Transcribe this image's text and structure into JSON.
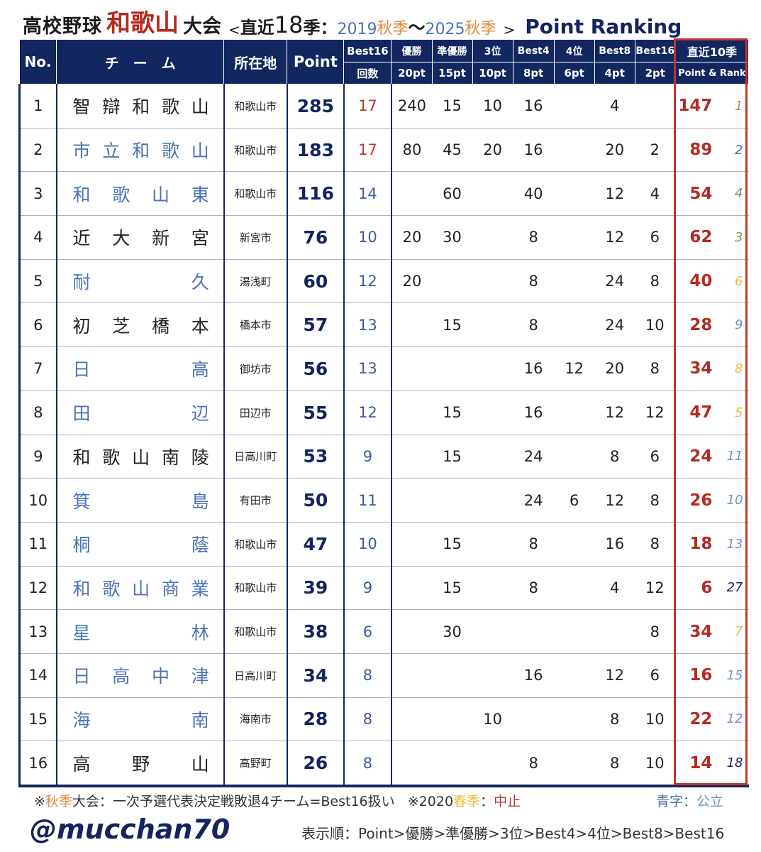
{
  "title": {
    "part1": "高校野球",
    "prefecture": "和歌山",
    "part2": "大会",
    "lt": "<",
    "recent": "直近",
    "seasons": "18",
    "season_unit": "季：",
    "from_year": "2019",
    "from_season": "秋季",
    "tilde": "～",
    "to_year": "2025",
    "to_season": "秋季",
    "gt": ">",
    "ranking": "Point Ranking"
  },
  "headers": {
    "no": "No.",
    "team": "チ　ー　ム",
    "location": "所在地",
    "point": "Point",
    "best16_count_top": "Best16",
    "best16_count_bottom": "回数",
    "cols": [
      {
        "label": "優勝",
        "pt": "20pt"
      },
      {
        "label": "準優勝",
        "pt": "15pt"
      },
      {
        "label": "3位",
        "pt": "10pt"
      },
      {
        "label": "Best4",
        "pt": "8pt"
      },
      {
        "label": "4位",
        "pt": "6pt"
      },
      {
        "label": "Best8",
        "pt": "4pt"
      },
      {
        "label": "Best16",
        "pt": "2pt"
      }
    ],
    "recent_top": "直近10季",
    "recent_bottom": "Point & Rank"
  },
  "rank_colors": {
    "1": "#c8864a",
    "2": "#4a6fb5",
    "3-4": "#6a9a4a",
    "5-8": "#e6be3c",
    "9-16": "#6f92c4",
    "other": "#1a2550"
  },
  "public_color": "#4a72b8",
  "rows": [
    {
      "no": "1",
      "team": "智辯和歌山",
      "public": false,
      "location": "和歌山市",
      "point": "285",
      "best16": "17",
      "v": [
        "240",
        "15",
        "10",
        "16",
        "",
        "4",
        ""
      ],
      "recent_point": "147",
      "recent_rank": "1"
    },
    {
      "no": "2",
      "team": "市立和歌山",
      "public": true,
      "location": "和歌山市",
      "point": "183",
      "best16": "17",
      "v": [
        "80",
        "45",
        "20",
        "16",
        "",
        "20",
        "2"
      ],
      "recent_point": "89",
      "recent_rank": "2"
    },
    {
      "no": "3",
      "team": "和歌山東",
      "public": true,
      "location": "和歌山市",
      "point": "116",
      "best16": "14",
      "v": [
        "",
        "60",
        "",
        "40",
        "",
        "12",
        "4"
      ],
      "recent_point": "54",
      "recent_rank": "4"
    },
    {
      "no": "4",
      "team": "近大新宮",
      "public": false,
      "location": "新宮市",
      "point": "76",
      "best16": "10",
      "v": [
        "20",
        "30",
        "",
        "8",
        "",
        "12",
        "6"
      ],
      "recent_point": "62",
      "recent_rank": "3"
    },
    {
      "no": "5",
      "team": "耐久",
      "public": true,
      "location": "湯浅町",
      "point": "60",
      "best16": "12",
      "v": [
        "20",
        "",
        "",
        "8",
        "",
        "24",
        "8"
      ],
      "recent_point": "40",
      "recent_rank": "6"
    },
    {
      "no": "6",
      "team": "初芝橋本",
      "public": false,
      "location": "橋本市",
      "point": "57",
      "best16": "13",
      "v": [
        "",
        "15",
        "",
        "8",
        "",
        "24",
        "10"
      ],
      "recent_point": "28",
      "recent_rank": "9"
    },
    {
      "no": "7",
      "team": "日高",
      "public": true,
      "location": "御坊市",
      "point": "56",
      "best16": "13",
      "v": [
        "",
        "",
        "",
        "16",
        "12",
        "20",
        "8"
      ],
      "recent_point": "34",
      "recent_rank": "8"
    },
    {
      "no": "8",
      "team": "田辺",
      "public": true,
      "location": "田辺市",
      "point": "55",
      "best16": "12",
      "v": [
        "",
        "15",
        "",
        "16",
        "",
        "12",
        "12"
      ],
      "recent_point": "47",
      "recent_rank": "5"
    },
    {
      "no": "9",
      "team": "和歌山南陵",
      "public": false,
      "location": "日高川町",
      "point": "53",
      "best16": "9",
      "v": [
        "",
        "15",
        "",
        "24",
        "",
        "8",
        "6"
      ],
      "recent_point": "24",
      "recent_rank": "11"
    },
    {
      "no": "10",
      "team": "箕島",
      "public": true,
      "location": "有田市",
      "point": "50",
      "best16": "11",
      "v": [
        "",
        "",
        "",
        "24",
        "6",
        "12",
        "8"
      ],
      "recent_point": "26",
      "recent_rank": "10"
    },
    {
      "no": "11",
      "team": "桐蔭",
      "public": true,
      "location": "和歌山市",
      "point": "47",
      "best16": "10",
      "v": [
        "",
        "15",
        "",
        "8",
        "",
        "16",
        "8"
      ],
      "recent_point": "18",
      "recent_rank": "13"
    },
    {
      "no": "12",
      "team": "和歌山商業",
      "public": true,
      "location": "和歌山市",
      "point": "39",
      "best16": "9",
      "v": [
        "",
        "15",
        "",
        "8",
        "",
        "4",
        "12"
      ],
      "recent_point": "6",
      "recent_rank": "27"
    },
    {
      "no": "13",
      "team": "星林",
      "public": true,
      "location": "和歌山市",
      "point": "38",
      "best16": "6",
      "v": [
        "",
        "30",
        "",
        "",
        "",
        "",
        "8"
      ],
      "recent_point": "34",
      "recent_rank": "7"
    },
    {
      "no": "14",
      "team": "日高中津",
      "public": true,
      "location": "日高川町",
      "point": "34",
      "best16": "8",
      "v": [
        "",
        "",
        "",
        "16",
        "",
        "12",
        "6"
      ],
      "recent_point": "16",
      "recent_rank": "15"
    },
    {
      "no": "15",
      "team": "海南",
      "public": true,
      "location": "海南市",
      "point": "28",
      "best16": "8",
      "v": [
        "",
        "",
        "10",
        "",
        "",
        "8",
        "10"
      ],
      "recent_point": "22",
      "recent_rank": "12"
    },
    {
      "no": "16",
      "team": "高野山",
      "public": false,
      "location": "高野町",
      "point": "26",
      "best16": "8",
      "v": [
        "",
        "",
        "",
        "8",
        "",
        "8",
        "10"
      ],
      "recent_point": "14",
      "recent_rank": "18"
    }
  ],
  "notes": {
    "mark1": "※",
    "autumn": "秋季",
    "note1_rest": "大会：一次予選代表決定戦敗退4チーム=Best16扱い",
    "mark2": "※2020",
    "spring": "春季",
    "colon": "：",
    "cancelled": "中止",
    "legend_blue_prefix": "青字：",
    "legend_blue": "公立",
    "handle": "@mucchan70",
    "order": "表示順：Point>優勝>準優勝>3位>Best4>4位>Best8>Best16"
  }
}
